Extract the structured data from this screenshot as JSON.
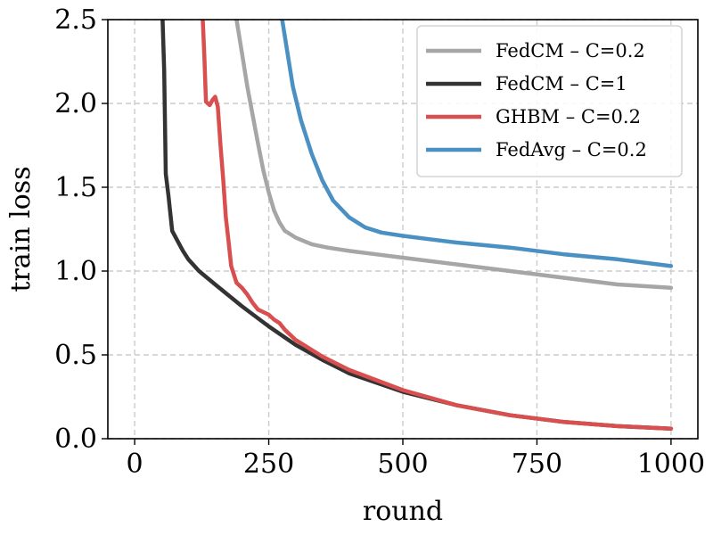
{
  "chart_data": {
    "type": "line",
    "title": "",
    "xlabel": "round",
    "ylabel": "train loss",
    "xlim": [
      -50,
      1050
    ],
    "ylim": [
      0.0,
      2.5
    ],
    "x_ticks": [
      0,
      250,
      500,
      750,
      1000
    ],
    "y_ticks": [
      0.0,
      0.5,
      1.0,
      1.5,
      2.0,
      2.5
    ],
    "x_tick_labels": [
      "0",
      "250",
      "500",
      "750",
      "1000"
    ],
    "y_tick_labels": [
      "0.0",
      "0.5",
      "1.0",
      "1.5",
      "2.0",
      "2.5"
    ],
    "grid": true,
    "legend_position": "top-right",
    "series": [
      {
        "name": "FedCM – C=0.2",
        "color": "#a6a6a6",
        "x": [
          190,
          200,
          210,
          220,
          230,
          240,
          250,
          260,
          270,
          280,
          300,
          330,
          360,
          400,
          450,
          500,
          600,
          700,
          800,
          900,
          1000
        ],
        "y": [
          2.5,
          2.3,
          2.1,
          1.93,
          1.76,
          1.6,
          1.47,
          1.36,
          1.29,
          1.24,
          1.2,
          1.16,
          1.14,
          1.12,
          1.1,
          1.08,
          1.04,
          1.0,
          0.96,
          0.92,
          0.9
        ]
      },
      {
        "name": "FedCM – C=1",
        "color": "#333333",
        "x": [
          52,
          55,
          58,
          63,
          70,
          80,
          90,
          100,
          120,
          150,
          200,
          250,
          300,
          350,
          400,
          500,
          600,
          700,
          800,
          900,
          1000
        ],
        "y": [
          2.5,
          2.2,
          1.58,
          1.45,
          1.24,
          1.18,
          1.12,
          1.07,
          1.0,
          0.92,
          0.79,
          0.67,
          0.56,
          0.47,
          0.39,
          0.28,
          0.2,
          0.14,
          0.1,
          0.075,
          0.06
        ]
      },
      {
        "name": "GHBM – C=0.2",
        "color": "#d94f4f",
        "x": [
          127,
          130,
          133,
          140,
          145,
          150,
          155,
          160,
          165,
          170,
          175,
          180,
          190,
          200,
          210,
          220,
          230,
          250,
          260,
          270,
          280,
          300,
          350,
          400,
          500,
          600,
          700,
          800,
          900,
          1000
        ],
        "y": [
          2.5,
          2.28,
          2.01,
          1.99,
          2.02,
          2.04,
          1.98,
          1.75,
          1.55,
          1.32,
          1.18,
          1.03,
          0.93,
          0.9,
          0.86,
          0.81,
          0.77,
          0.74,
          0.71,
          0.69,
          0.65,
          0.59,
          0.49,
          0.41,
          0.29,
          0.2,
          0.14,
          0.1,
          0.075,
          0.06
        ]
      },
      {
        "name": "FedAvg – C=0.2",
        "color": "#4a90c2",
        "x": [
          275,
          285,
          295,
          310,
          330,
          350,
          370,
          400,
          430,
          460,
          500,
          550,
          600,
          700,
          800,
          900,
          1000
        ],
        "y": [
          2.5,
          2.3,
          2.1,
          1.9,
          1.7,
          1.54,
          1.42,
          1.32,
          1.26,
          1.23,
          1.21,
          1.19,
          1.17,
          1.14,
          1.1,
          1.07,
          1.03
        ]
      }
    ]
  }
}
